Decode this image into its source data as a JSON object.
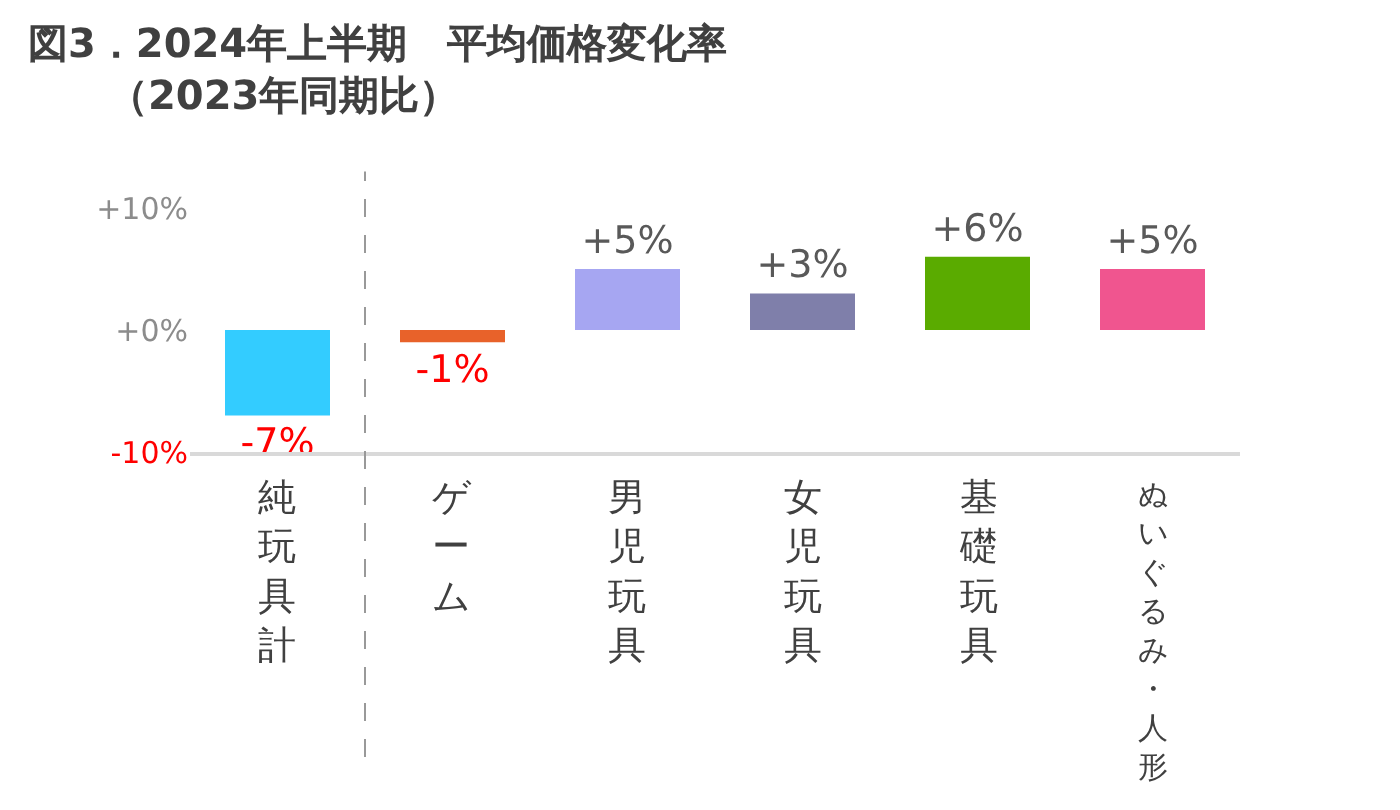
{
  "chart_data": {
    "type": "bar",
    "title": "図3．2024年上半期　平均価格変化率",
    "subtitle": "（2023年同期比）",
    "categories": [
      "純玩具計",
      "ゲーム",
      "男児玩具",
      "女児玩具",
      "基礎玩具",
      "ぬいぐるみ・人形"
    ],
    "values": [
      -7,
      -1,
      5,
      3,
      6,
      5
    ],
    "colors": [
      "#33ccff",
      "#e8622a",
      "#a6a6f2",
      "#7f7faa",
      "#5aab00",
      "#f0558f"
    ],
    "value_labels": [
      "-7%",
      "-1%",
      "+5%",
      "+3%",
      "+6%",
      "+5%"
    ],
    "ylim": [
      -10,
      10
    ],
    "yticks": [
      {
        "value": -10,
        "label": "-10%"
      },
      {
        "value": 0,
        "label": "+0%"
      },
      {
        "value": 10,
        "label": "+10%"
      }
    ],
    "legend": false
  }
}
